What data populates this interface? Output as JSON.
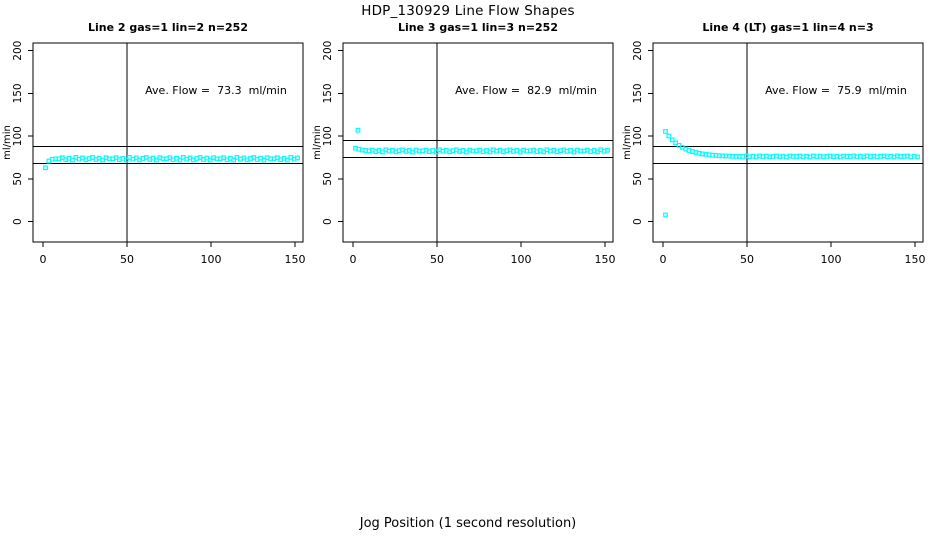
{
  "page": {
    "title": "HDP_130929  Line Flow Shapes",
    "xlabel": "Jog Position (1 second resolution)",
    "background": "#ffffff",
    "axis_color": "#000000"
  },
  "chart_data": [
    {
      "type": "scatter",
      "title": "Line 2 gas=1 lin=2 n=252",
      "annotation": "Ave. Flow =  73.3  ml/min",
      "ave_flow_ml_min": 73.3,
      "ylabel": "ml/min",
      "xticks": [
        0,
        50,
        100,
        150
      ],
      "yticks": [
        0,
        50,
        100,
        150,
        200
      ],
      "xlim": [
        0,
        155
      ],
      "ylim": [
        0,
        200
      ],
      "vline_x": 50,
      "hlines": [
        88,
        68
      ],
      "marker_color": "#00FFFF",
      "points": [
        [
          1.5,
          63
        ],
        [
          3.5,
          70.9
        ],
        [
          5.5,
          73
        ],
        [
          7.5,
          73.4
        ],
        [
          9.5,
          73.6
        ],
        [
          11.5,
          74.9
        ],
        [
          13.5,
          72.5
        ],
        [
          15.5,
          74.2
        ],
        [
          17.5,
          72.1
        ],
        [
          19.5,
          75.2
        ],
        [
          21.5,
          73.1
        ],
        [
          23.5,
          74.6
        ],
        [
          25.5,
          72.3
        ],
        [
          27.5,
          73.9
        ],
        [
          29.5,
          75.1
        ],
        [
          31.5,
          72.8
        ],
        [
          33.5,
          74.4
        ],
        [
          35.5,
          72
        ],
        [
          37.5,
          74.8
        ],
        [
          39.5,
          73.4
        ],
        [
          41.5,
          73.6
        ],
        [
          43.5,
          74.9
        ],
        [
          45.5,
          72.5
        ],
        [
          47.5,
          74.2
        ],
        [
          49.5,
          72.1
        ],
        [
          51.5,
          75.2
        ],
        [
          53.5,
          73.1
        ],
        [
          55.5,
          74.6
        ],
        [
          57.5,
          72.3
        ],
        [
          59.5,
          73.9
        ],
        [
          61.5,
          75.1
        ],
        [
          63.5,
          72.8
        ],
        [
          65.5,
          74.4
        ],
        [
          67.5,
          72
        ],
        [
          69.5,
          74.8
        ],
        [
          71.5,
          73.4
        ],
        [
          73.5,
          73.6
        ],
        [
          75.5,
          74.9
        ],
        [
          77.5,
          72.5
        ],
        [
          79.5,
          74.2
        ],
        [
          81.5,
          72.1
        ],
        [
          83.5,
          75.2
        ],
        [
          85.5,
          73.1
        ],
        [
          87.5,
          74.6
        ],
        [
          89.5,
          72.3
        ],
        [
          91.5,
          73.9
        ],
        [
          93.5,
          75.1
        ],
        [
          95.5,
          72.8
        ],
        [
          97.5,
          74.4
        ],
        [
          99.5,
          72
        ],
        [
          101.5,
          74.8
        ],
        [
          103.5,
          73.4
        ],
        [
          105.5,
          73.6
        ],
        [
          107.5,
          74.9
        ],
        [
          109.5,
          72.5
        ],
        [
          111.5,
          74.2
        ],
        [
          113.5,
          72.1
        ],
        [
          115.5,
          75.2
        ],
        [
          117.5,
          73.1
        ],
        [
          119.5,
          74.6
        ],
        [
          121.5,
          72.3
        ],
        [
          123.5,
          73.9
        ],
        [
          125.5,
          75.1
        ],
        [
          127.5,
          72.8
        ],
        [
          129.5,
          74.4
        ],
        [
          131.5,
          72
        ],
        [
          133.5,
          74.8
        ],
        [
          135.5,
          73.4
        ],
        [
          137.5,
          73.6
        ],
        [
          139.5,
          74.9
        ],
        [
          141.5,
          72.5
        ],
        [
          143.5,
          74.2
        ],
        [
          145.5,
          72.1
        ],
        [
          147.5,
          75.2
        ],
        [
          149.5,
          73.1
        ],
        [
          151.5,
          74.6
        ]
      ],
      "outliers": []
    },
    {
      "type": "scatter",
      "title": "Line 3 gas=1 lin=3 n=252",
      "annotation": "Ave. Flow =  82.9  ml/min",
      "ave_flow_ml_min": 82.9,
      "ylabel": "ml/min",
      "xticks": [
        0,
        50,
        100,
        150
      ],
      "yticks": [
        0,
        50,
        100,
        150,
        200
      ],
      "xlim": [
        0,
        155
      ],
      "ylim": [
        0,
        200
      ],
      "vline_x": 50,
      "hlines": [
        95,
        75
      ],
      "marker_color": "#00FFFF",
      "points": [
        [
          1.5,
          86
        ],
        [
          3.5,
          84.8
        ],
        [
          5.5,
          83.9
        ],
        [
          7.5,
          83.3
        ],
        [
          9.5,
          82.8
        ],
        [
          11.5,
          83.8
        ],
        [
          13.5,
          81.9
        ],
        [
          15.5,
          83.3
        ],
        [
          17.5,
          81.6
        ],
        [
          19.5,
          84.1
        ],
        [
          21.5,
          82.4
        ],
        [
          23.5,
          83.6
        ],
        [
          25.5,
          81.8
        ],
        [
          27.5,
          83
        ],
        [
          29.5,
          84
        ],
        [
          31.5,
          82.2
        ],
        [
          33.5,
          83.4
        ],
        [
          35.5,
          81.5
        ],
        [
          37.5,
          83.8
        ],
        [
          39.5,
          82.6
        ],
        [
          41.5,
          82.8
        ],
        [
          43.5,
          83.8
        ],
        [
          45.5,
          81.9
        ],
        [
          47.5,
          83.3
        ],
        [
          49.5,
          81.6
        ],
        [
          51.5,
          84.1
        ],
        [
          53.5,
          82.4
        ],
        [
          55.5,
          83.6
        ],
        [
          57.5,
          81.8
        ],
        [
          59.5,
          83
        ],
        [
          61.5,
          84
        ],
        [
          63.5,
          82.2
        ],
        [
          65.5,
          83.4
        ],
        [
          67.5,
          81.5
        ],
        [
          69.5,
          83.8
        ],
        [
          71.5,
          82.6
        ],
        [
          73.5,
          82.8
        ],
        [
          75.5,
          83.8
        ],
        [
          77.5,
          81.9
        ],
        [
          79.5,
          83.3
        ],
        [
          81.5,
          81.6
        ],
        [
          83.5,
          84.1
        ],
        [
          85.5,
          82.4
        ],
        [
          87.5,
          83.6
        ],
        [
          89.5,
          81.8
        ],
        [
          91.5,
          83
        ],
        [
          93.5,
          84
        ],
        [
          95.5,
          82.2
        ],
        [
          97.5,
          83.4
        ],
        [
          99.5,
          81.5
        ],
        [
          101.5,
          83.8
        ],
        [
          103.5,
          82.6
        ],
        [
          105.5,
          82.8
        ],
        [
          107.5,
          83.8
        ],
        [
          109.5,
          81.9
        ],
        [
          111.5,
          83.3
        ],
        [
          113.5,
          81.6
        ],
        [
          115.5,
          84.1
        ],
        [
          117.5,
          82.4
        ],
        [
          119.5,
          83.6
        ],
        [
          121.5,
          81.8
        ],
        [
          123.5,
          83
        ],
        [
          125.5,
          84
        ],
        [
          127.5,
          82.2
        ],
        [
          129.5,
          83.4
        ],
        [
          131.5,
          81.5
        ],
        [
          133.5,
          83.8
        ],
        [
          135.5,
          82.6
        ],
        [
          137.5,
          82.8
        ],
        [
          139.5,
          83.8
        ],
        [
          141.5,
          81.9
        ],
        [
          143.5,
          83.3
        ],
        [
          145.5,
          81.6
        ],
        [
          147.5,
          84.1
        ],
        [
          149.5,
          82.4
        ],
        [
          151.5,
          83.6
        ]
      ],
      "outliers": [
        [
          3,
          107
        ]
      ]
    },
    {
      "type": "scatter",
      "title": "Line 4 (LT) gas=1 lin=4 n=3",
      "annotation": "Ave. Flow =  75.9  ml/min",
      "ave_flow_ml_min": 75.9,
      "ylabel": "ml/min",
      "xticks": [
        0,
        50,
        100,
        150
      ],
      "yticks": [
        0,
        50,
        100,
        150,
        200
      ],
      "xlim": [
        0,
        155
      ],
      "ylim": [
        0,
        200
      ],
      "vline_x": 50,
      "hlines": [
        88,
        68
      ],
      "marker_color": "#00FFFF",
      "points": [
        [
          1.5,
          105.5
        ],
        [
          3.5,
          100.2
        ],
        [
          5.5,
          95.8
        ],
        [
          7.5,
          92.2
        ],
        [
          9.5,
          89.2
        ],
        [
          11.5,
          86.9
        ],
        [
          13.5,
          84.9
        ],
        [
          15.5,
          83.3
        ],
        [
          17.5,
          82
        ],
        [
          19.5,
          80.9
        ],
        [
          21.5,
          80
        ],
        [
          23.5,
          79.3
        ],
        [
          25.5,
          78.7
        ],
        [
          27.5,
          78.2
        ],
        [
          29.5,
          77.8
        ],
        [
          31.5,
          77.5
        ],
        [
          33.5,
          77.2
        ],
        [
          35.5,
          77
        ],
        [
          37.5,
          76.8
        ],
        [
          39.5,
          76.7
        ],
        [
          41.5,
          76.5
        ],
        [
          43.5,
          76.4
        ],
        [
          45.5,
          76.4
        ],
        [
          47.5,
          76.3
        ],
        [
          49.5,
          76.8
        ],
        [
          51.5,
          75.8
        ],
        [
          53.5,
          76.6
        ],
        [
          55.5,
          75.7
        ],
        [
          57.5,
          77
        ],
        [
          59.5,
          76.1
        ],
        [
          61.5,
          76.7
        ],
        [
          63.5,
          75.8
        ],
        [
          65.5,
          76.4
        ],
        [
          67.5,
          76.9
        ],
        [
          69.5,
          76
        ],
        [
          71.5,
          76.6
        ],
        [
          73.5,
          75.6
        ],
        [
          75.5,
          76.8
        ],
        [
          77.5,
          76.2
        ],
        [
          79.5,
          76.3
        ],
        [
          81.5,
          76.8
        ],
        [
          83.5,
          75.8
        ],
        [
          85.5,
          76.6
        ],
        [
          87.5,
          75.7
        ],
        [
          89.5,
          77
        ],
        [
          91.5,
          76.1
        ],
        [
          93.5,
          76.7
        ],
        [
          95.5,
          75.8
        ],
        [
          97.5,
          76.4
        ],
        [
          99.5,
          76.9
        ],
        [
          101.5,
          76
        ],
        [
          103.5,
          76.6
        ],
        [
          105.5,
          75.6
        ],
        [
          107.5,
          76.8
        ],
        [
          109.5,
          76.2
        ],
        [
          111.5,
          76.3
        ],
        [
          113.5,
          76.8
        ],
        [
          115.5,
          75.8
        ],
        [
          117.5,
          76.6
        ],
        [
          119.5,
          75.7
        ],
        [
          121.5,
          77
        ],
        [
          123.5,
          76.1
        ],
        [
          125.5,
          76.7
        ],
        [
          127.5,
          75.8
        ],
        [
          129.5,
          76.4
        ],
        [
          131.5,
          76.9
        ],
        [
          133.5,
          76
        ],
        [
          135.5,
          76.6
        ],
        [
          137.5,
          75.6
        ],
        [
          139.5,
          76.8
        ],
        [
          141.5,
          76.2
        ],
        [
          143.5,
          76.3
        ],
        [
          145.5,
          76.8
        ],
        [
          147.5,
          75.8
        ],
        [
          149.5,
          76.6
        ],
        [
          151.5,
          75.7
        ]
      ],
      "outliers": [
        [
          1.5,
          8
        ]
      ]
    }
  ]
}
